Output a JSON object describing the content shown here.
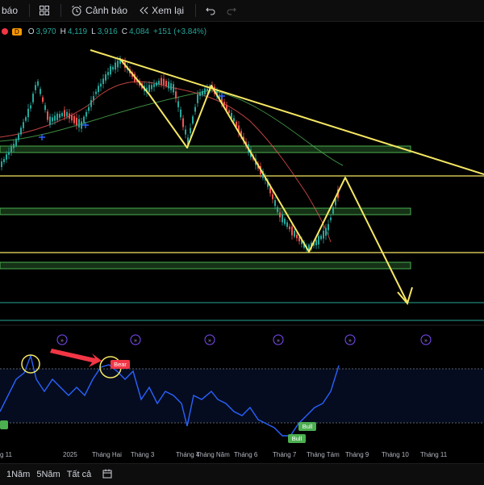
{
  "toolbar": {
    "partial_label": "báo",
    "alerts_label": "Cảnh báo",
    "replay_label": "Xem lại"
  },
  "legend": {
    "interval_badge": "D",
    "open_key": "O",
    "open": "3,970",
    "high_key": "H",
    "high": "4,119",
    "low_key": "L",
    "low": "3,916",
    "close_key": "C",
    "close": "4,084",
    "change": "+151 (+3.84%)"
  },
  "markers": {
    "bear": "Bear",
    "bull_1": "Bull",
    "bull_2": "Bull"
  },
  "time_axis": [
    "g 11",
    "2025",
    "Tháng Hai",
    "Tháng 3",
    "Tháng 4",
    "Tháng Năm",
    "Tháng 6",
    "Tháng 7",
    "Tháng Tám",
    "Tháng 9",
    "Tháng 10",
    "Tháng 11"
  ],
  "range_buttons": [
    "1Năm",
    "5Năm",
    "Tất cả"
  ],
  "colors": {
    "up": "#26a69a",
    "down": "#ef5350",
    "trendline": "#f5e663",
    "zone": "#4caf50",
    "rsi": "#2962ff",
    "bear": "#f23645",
    "bull": "#4caf50"
  },
  "icons": [
    "grid-icon",
    "alarm-clock-icon",
    "replay-icon",
    "undo-icon",
    "redo-icon",
    "calendar-range-icon"
  ]
}
